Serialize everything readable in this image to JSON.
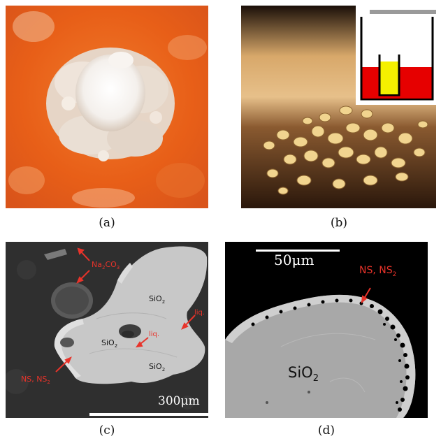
{
  "panels": {
    "a": {
      "caption": "(a)"
    },
    "b": {
      "caption": "(b)"
    },
    "c": {
      "caption": "(c)",
      "labels": {
        "na2co3_main": "Na",
        "na2co3_sub2": "2",
        "na2co3_co": "CO",
        "na2co3_sub3": "3",
        "sio2_top": "SiO",
        "sio2_left": "SiO",
        "sio2_bottom": "SiO",
        "sub2": "2",
        "liq_right": "liq.",
        "liq_center": "liq.",
        "ns_main": "NS, NS",
        "ns_sub": "2"
      },
      "scale_bar": "300μm"
    },
    "d": {
      "caption": "(d)",
      "labels": {
        "ns_main": "NS, NS",
        "ns_sub": "2",
        "sio2_main": "SiO",
        "sio2_sub": "2"
      },
      "scale_bar": "50μm"
    }
  },
  "colors": {
    "orange_bg": "#e8621a",
    "crystal": "#f3efe9",
    "amber_bg": "#3a2414",
    "sem_bg": "#2e2e2e",
    "sem_grain": "#c9c9c9",
    "annotation_red": "#e8332a",
    "inset_red": "#e60000",
    "inset_yellow": "#f5f000"
  }
}
